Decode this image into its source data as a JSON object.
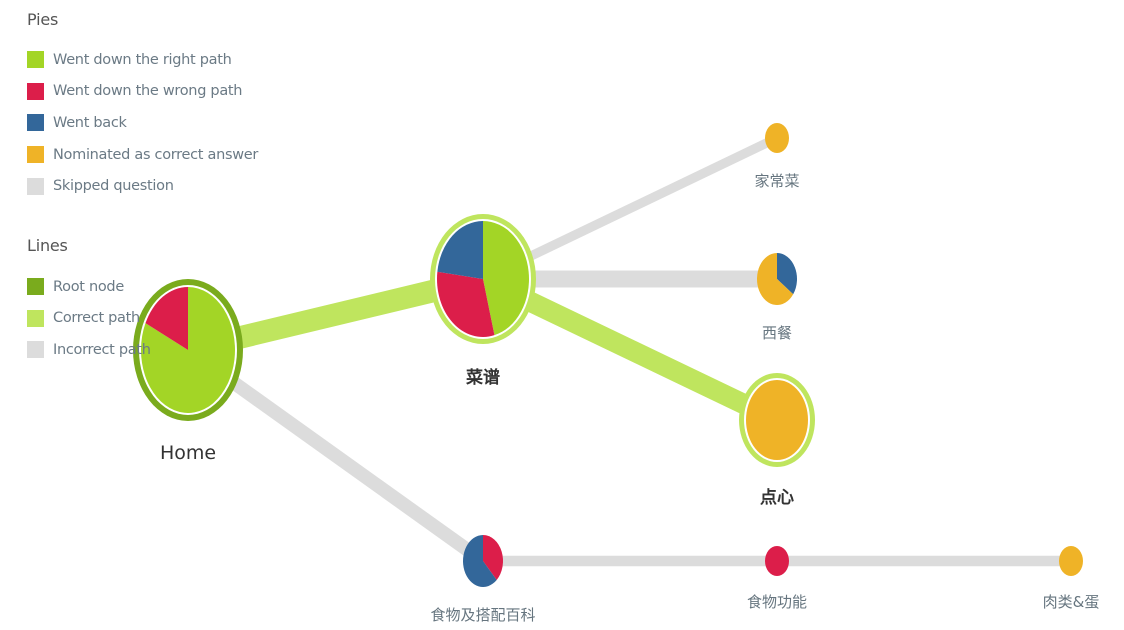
{
  "colors": {
    "right_path": "#a3d526",
    "wrong_path": "#dc1e4a",
    "went_back": "#33679a",
    "nominated": "#efb327",
    "skipped": "#dcdcdc",
    "root_node": "#7aab1d",
    "correct_line": "#bfe55e",
    "incorrect_line": "#dcdcdc",
    "label_normal": "#66757f",
    "label_bold": "#333333"
  },
  "legend": {
    "pies": {
      "title": "Pies",
      "items": [
        {
          "label": "Went down the right path",
          "color": "#a3d526"
        },
        {
          "label": "Went down the wrong path",
          "color": "#dc1e4a"
        },
        {
          "label": "Went back",
          "color": "#33679a"
        },
        {
          "label": "Nominated as correct answer",
          "color": "#efb327"
        },
        {
          "label": "Skipped question",
          "color": "#dcdcdc"
        }
      ]
    },
    "lines": {
      "title": "Lines",
      "items": [
        {
          "label": "Root node",
          "color": "#7aab1d"
        },
        {
          "label": "Correct path",
          "color": "#bfe55e"
        },
        {
          "label": "Incorrect path",
          "color": "#dcdcdc"
        }
      ]
    }
  },
  "chart_data": {
    "type": "pietree",
    "nodes": [
      {
        "id": "home",
        "label": "Home",
        "correct_path": true,
        "root": true,
        "slices": [
          {
            "category": "right_path",
            "value": 0.82
          },
          {
            "category": "wrong_path",
            "value": 0.18
          }
        ]
      },
      {
        "id": "caipu",
        "label": "菜谱",
        "correct_path": true,
        "slices": [
          {
            "category": "right_path",
            "value": 0.46
          },
          {
            "category": "wrong_path",
            "value": 0.31
          },
          {
            "category": "went_back",
            "value": 0.23
          }
        ]
      },
      {
        "id": "jiachangcai",
        "label": "家常菜",
        "correct_path": false,
        "slices": [
          {
            "category": "nominated",
            "value": 1.0
          }
        ]
      },
      {
        "id": "xican",
        "label": "西餐",
        "correct_path": false,
        "slices": [
          {
            "category": "went_back",
            "value": 0.35
          },
          {
            "category": "nominated",
            "value": 0.65
          }
        ]
      },
      {
        "id": "dianxin",
        "label": "点心",
        "correct_path": true,
        "slices": [
          {
            "category": "nominated",
            "value": 1.0
          }
        ]
      },
      {
        "id": "shiwu",
        "label": "食物及搭配百科",
        "correct_path": false,
        "slices": [
          {
            "category": "wrong_path",
            "value": 0.38
          },
          {
            "category": "went_back",
            "value": 0.62
          }
        ]
      },
      {
        "id": "shiwugongneng",
        "label": "食物功能",
        "correct_path": false,
        "slices": [
          {
            "category": "wrong_path",
            "value": 1.0
          }
        ]
      },
      {
        "id": "roulei",
        "label": "肉类&蛋",
        "correct_path": false,
        "slices": [
          {
            "category": "nominated",
            "value": 1.0
          }
        ]
      }
    ],
    "edges": [
      {
        "from": "home",
        "to": "caipu",
        "type": "correct",
        "weight": 0.75
      },
      {
        "from": "home",
        "to": "shiwu",
        "type": "incorrect",
        "weight": 0.35
      },
      {
        "from": "caipu",
        "to": "jiachangcai",
        "type": "incorrect",
        "weight": 0.15
      },
      {
        "from": "caipu",
        "to": "xican",
        "type": "incorrect",
        "weight": 0.5
      },
      {
        "from": "caipu",
        "to": "dianxin",
        "type": "correct",
        "weight": 0.65
      },
      {
        "from": "shiwu",
        "to": "shiwugongneng",
        "type": "incorrect",
        "weight": 0.2
      },
      {
        "from": "shiwugongneng",
        "to": "roulei",
        "type": "incorrect",
        "weight": 0.2
      }
    ]
  }
}
